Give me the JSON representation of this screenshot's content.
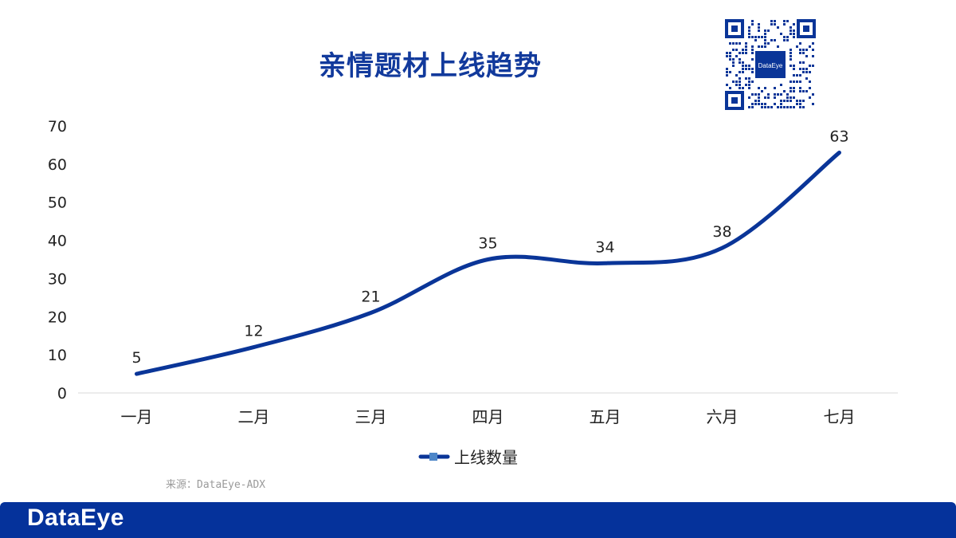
{
  "page": {
    "title": "亲情题材上线趋势",
    "source": "来源：DataEye-ADX",
    "brand": "DataEye",
    "qr_center_text": "DataEye"
  },
  "colors": {
    "accent": "#0a3598",
    "title": "#123a9c",
    "footer": "#05329b",
    "axis_text": "#222222",
    "grid": "#d9d9d9"
  },
  "icons": {
    "qr": "qr-code-icon",
    "legend": "legend-line-marker-icon"
  },
  "chart_data": {
    "type": "line",
    "title": "亲情题材上线趋势",
    "categories": [
      "一月",
      "二月",
      "三月",
      "四月",
      "五月",
      "六月",
      "七月"
    ],
    "series": [
      {
        "name": "上线数量",
        "values": [
          5,
          12,
          21,
          35,
          34,
          38,
          63
        ]
      }
    ],
    "ylim": [
      0,
      70
    ],
    "yticks": [
      0,
      10,
      20,
      30,
      40,
      50,
      60,
      70
    ],
    "data_labels": true,
    "smooth": true,
    "grid": false,
    "legend": "bottom-center"
  }
}
